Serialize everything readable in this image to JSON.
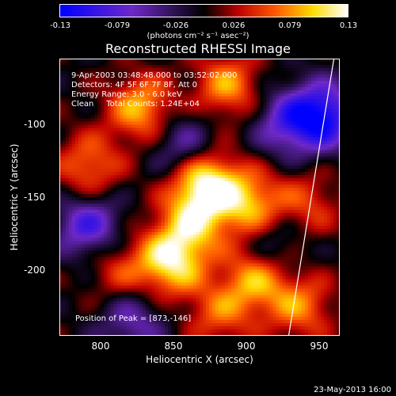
{
  "colorbar": {
    "ticks": [
      "-0.13",
      "-0.079",
      "-0.026",
      "0.026",
      "0.079",
      "0.13"
    ],
    "units": "(photons cm⁻² s⁻¹ asec⁻²)"
  },
  "chart_data": {
    "type": "heatmap",
    "title": "Reconstructed RHESSI Image",
    "xlabel": "Heliocentric X (arcsec)",
    "ylabel": "Heliocentric Y (arcsec)",
    "xlim": [
      770,
      962
    ],
    "ylim": [
      -250,
      -61
    ],
    "x_ticks": [
      800,
      850,
      900,
      950
    ],
    "y_ticks": [
      -100,
      -150,
      -200
    ],
    "color_range": [
      -0.13,
      0.13
    ],
    "peak": [
      873,
      -146
    ],
    "limb_line": [
      [
        927,
        -250
      ],
      [
        958,
        -61
      ]
    ],
    "sources": [
      {
        "x": 870,
        "y": -147,
        "amp": 0.13
      },
      {
        "x": 826,
        "y": -95,
        "amp": 0.09
      },
      {
        "x": 846,
        "y": -200,
        "amp": 0.11
      },
      {
        "x": 900,
        "y": -160,
        "amp": 0.09
      },
      {
        "x": 905,
        "y": -210,
        "amp": 0.09
      },
      {
        "x": 885,
        "y": -80,
        "amp": 0.08
      },
      {
        "x": 790,
        "y": -135,
        "amp": 0.07
      },
      {
        "x": 935,
        "y": -230,
        "amp": 0.07
      },
      {
        "x": 860,
        "y": -175,
        "amp": 0.08
      },
      {
        "x": 810,
        "y": -205,
        "amp": 0.05
      },
      {
        "x": 940,
        "y": -160,
        "amp": 0.05
      },
      {
        "x": 880,
        "y": -235,
        "amp": 0.06
      },
      {
        "x": 925,
        "y": -105,
        "amp": -0.07
      },
      {
        "x": 950,
        "y": -100,
        "amp": -0.12
      },
      {
        "x": 790,
        "y": -175,
        "amp": -0.09
      },
      {
        "x": 855,
        "y": -120,
        "amp": -0.06
      },
      {
        "x": 915,
        "y": -190,
        "amp": -0.05
      },
      {
        "x": 820,
        "y": -240,
        "amp": -0.06
      }
    ]
  },
  "info": {
    "line1": "9-Apr-2003 03:48:48.000 to 03:52:02.000",
    "line2": "Detectors: 4F 5F 6F 7F 8F, Att 0",
    "line3": "Energy Range: 3.0 - 6.0 keV",
    "line4": "Clean     Total Counts: 1.24E+04",
    "peak": "Position of Peak = [873,-146]"
  },
  "footer": {
    "date": "23-May-2013 16:00"
  }
}
